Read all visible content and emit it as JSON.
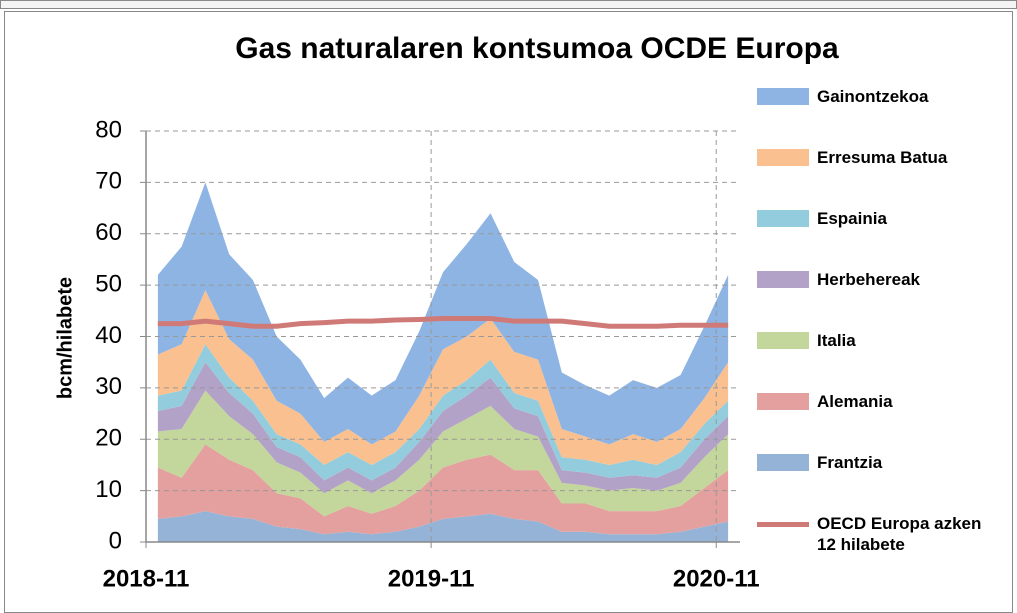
{
  "chart_data": {
    "type": "stacked_area",
    "title": "Gas naturalaren kontsumoa OCDE Europa",
    "y_label": "bcm/hilabete",
    "categories": [
      "2018-11",
      null,
      null,
      null,
      null,
      null,
      null,
      null,
      null,
      null,
      null,
      null,
      "2019-11",
      null,
      null,
      null,
      null,
      null,
      null,
      null,
      null,
      null,
      null,
      null,
      "2020-11"
    ],
    "ylim": [
      0,
      80
    ],
    "yticks": [
      0,
      10,
      20,
      30,
      40,
      50,
      60,
      70,
      80
    ],
    "grid": true,
    "series": [
      {
        "name": "Frantzia",
        "color": "#95b3d7",
        "values": [
          4.5,
          5,
          6,
          5,
          4.5,
          3,
          2.5,
          1.5,
          2,
          1.5,
          2,
          3,
          4.5,
          5,
          5.5,
          4.5,
          4,
          2,
          2,
          1.5,
          1.5,
          1.5,
          2,
          3,
          4
        ]
      },
      {
        "name": "Alemania",
        "color": "#e4a09e",
        "values": [
          10,
          7.5,
          13,
          11,
          9.5,
          6.5,
          6,
          3.5,
          5,
          4,
          5,
          7,
          10,
          11,
          11.5,
          9.5,
          10,
          5.5,
          5.5,
          4.5,
          4.5,
          4.5,
          5,
          7.5,
          10
        ]
      },
      {
        "name": "Italia",
        "color": "#c3d69b",
        "values": [
          7,
          9.5,
          10.5,
          8.5,
          7,
          6,
          5,
          4.5,
          5,
          4,
          5,
          6,
          7,
          8,
          9.5,
          8,
          6.5,
          4,
          3.5,
          4,
          4.5,
          4,
          4.5,
          6,
          7
        ]
      },
      {
        "name": "Herbehereak",
        "color": "#b3a2c7",
        "values": [
          4,
          4.5,
          5.5,
          4.5,
          4,
          3,
          3,
          2.5,
          2.5,
          2.5,
          2.5,
          3.5,
          4,
          4.5,
          5.5,
          4,
          4,
          2.5,
          2.5,
          2.5,
          2.5,
          2.5,
          3,
          3.5,
          3.5
        ]
      },
      {
        "name": "Espainia",
        "color": "#93cddd",
        "values": [
          3,
          3,
          3.5,
          3,
          2.5,
          2.5,
          2.5,
          3,
          3,
          3,
          3,
          2.5,
          3,
          3,
          3.5,
          3,
          3,
          2.5,
          2.5,
          2.5,
          3,
          2.5,
          3,
          3,
          3
        ]
      },
      {
        "name": "Erresuma Batua",
        "color": "#fac090",
        "values": [
          8,
          9,
          10.5,
          7.5,
          8,
          6.5,
          6,
          4.5,
          4.5,
          4,
          4,
          6.5,
          9,
          8.5,
          8,
          8,
          8,
          5.5,
          4.5,
          4,
          5,
          4.5,
          4.5,
          5,
          7.5
        ]
      },
      {
        "name": "Gainontzekoa",
        "color": "#8eb4e3",
        "values": [
          15.5,
          19,
          21,
          16.5,
          15.5,
          12.5,
          10.5,
          8.5,
          10,
          9.5,
          10,
          12.5,
          15,
          18,
          20.5,
          17.5,
          15.5,
          11,
          10,
          9.5,
          10.5,
          10.5,
          10.5,
          14,
          17
        ]
      },
      {
        "name": "OECD Europa azken 12 hilabete",
        "color": "#d07a78",
        "kind": "line",
        "values": [
          42.5,
          42.5,
          43,
          42.5,
          42,
          42,
          42.5,
          42.7,
          43,
          43,
          43.2,
          43.3,
          43.5,
          43.5,
          43.5,
          43,
          43,
          43,
          42.5,
          42,
          42,
          42,
          42.2,
          42.2,
          42.2
        ]
      }
    ]
  }
}
